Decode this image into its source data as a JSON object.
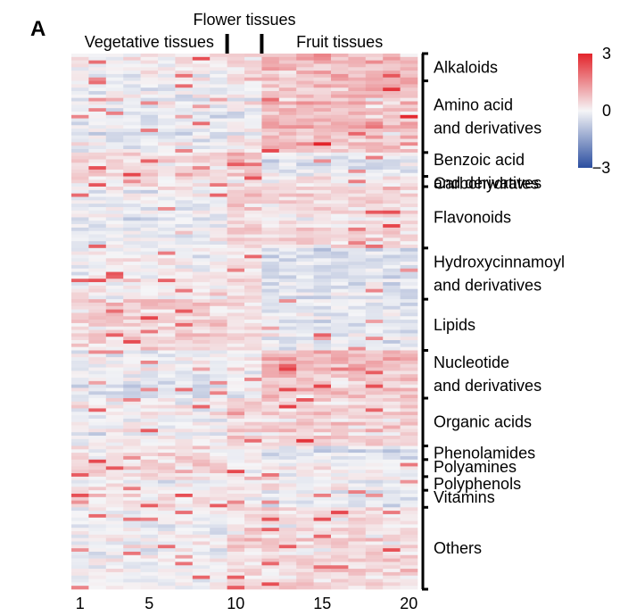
{
  "panel_label": "A",
  "chart_data": {
    "type": "heatmap",
    "title": "",
    "xlabel": "",
    "ylabel": "",
    "columns": 20,
    "x_tick_labels": [
      {
        "column": 1,
        "label": "1"
      },
      {
        "column": 5,
        "label": "5"
      },
      {
        "column": 10,
        "label": "10"
      },
      {
        "column": 15,
        "label": "15"
      },
      {
        "column": 20,
        "label": "20"
      }
    ],
    "column_groups": [
      {
        "label": "Vegetative tissues",
        "start_column": 1,
        "end_column": 9
      },
      {
        "label": "Flower tissues",
        "start_column": 10,
        "end_column": 11
      },
      {
        "label": "Fruit tissues",
        "start_column": 12,
        "end_column": 20
      }
    ],
    "row_groups": [
      {
        "name": "Alkaloids",
        "lines": [
          "Alkaloids"
        ],
        "rows": 8
      },
      {
        "name": "Amino acid and derivatives",
        "lines": [
          "Amino acid",
          "and derivatives"
        ],
        "rows": 21
      },
      {
        "name": "Benzoic acid and derivatives",
        "lines": [
          "Benzoic acid",
          "and derivatives"
        ],
        "rows": 7
      },
      {
        "name": "Carbohydrates",
        "lines": [
          "Carbohydrates"
        ],
        "rows": 3
      },
      {
        "name": "Flavonoids",
        "lines": [
          "Flavonoids"
        ],
        "rows": 18
      },
      {
        "name": "Hydroxycinnamoyl and derivatives",
        "lines": [
          "Hydroxycinnamoyl",
          "and derivatives"
        ],
        "rows": 15
      },
      {
        "name": "Lipids",
        "lines": [
          "Lipids"
        ],
        "rows": 15
      },
      {
        "name": "Nucleotide and derivatives",
        "lines": [
          "Nucleotide",
          "and derivatives"
        ],
        "rows": 14
      },
      {
        "name": "Organic acids",
        "lines": [
          "Organic acids"
        ],
        "rows": 14
      },
      {
        "name": "Phenolamides",
        "lines": [
          "Phenolamides"
        ],
        "rows": 4
      },
      {
        "name": "Polyamines",
        "lines": [
          "Polyamines"
        ],
        "rows": 5
      },
      {
        "name": "Polyphenols",
        "lines": [
          "Polyphenols"
        ],
        "rows": 4
      },
      {
        "name": "Vitamins",
        "lines": [
          "Vitamins"
        ],
        "rows": 5
      },
      {
        "name": "Others",
        "lines": [
          "Others"
        ],
        "rows": 24
      }
    ],
    "colorbar": {
      "min": -3,
      "max": 3,
      "ticks": [
        {
          "value": 3,
          "label": "3"
        },
        {
          "value": 0,
          "label": "0"
        },
        {
          "value": -3,
          "label": "−3"
        }
      ],
      "colors": {
        "low": "#2b4ea0",
        "mid": "#f5f5f7",
        "high": "#e3242b"
      }
    }
  }
}
